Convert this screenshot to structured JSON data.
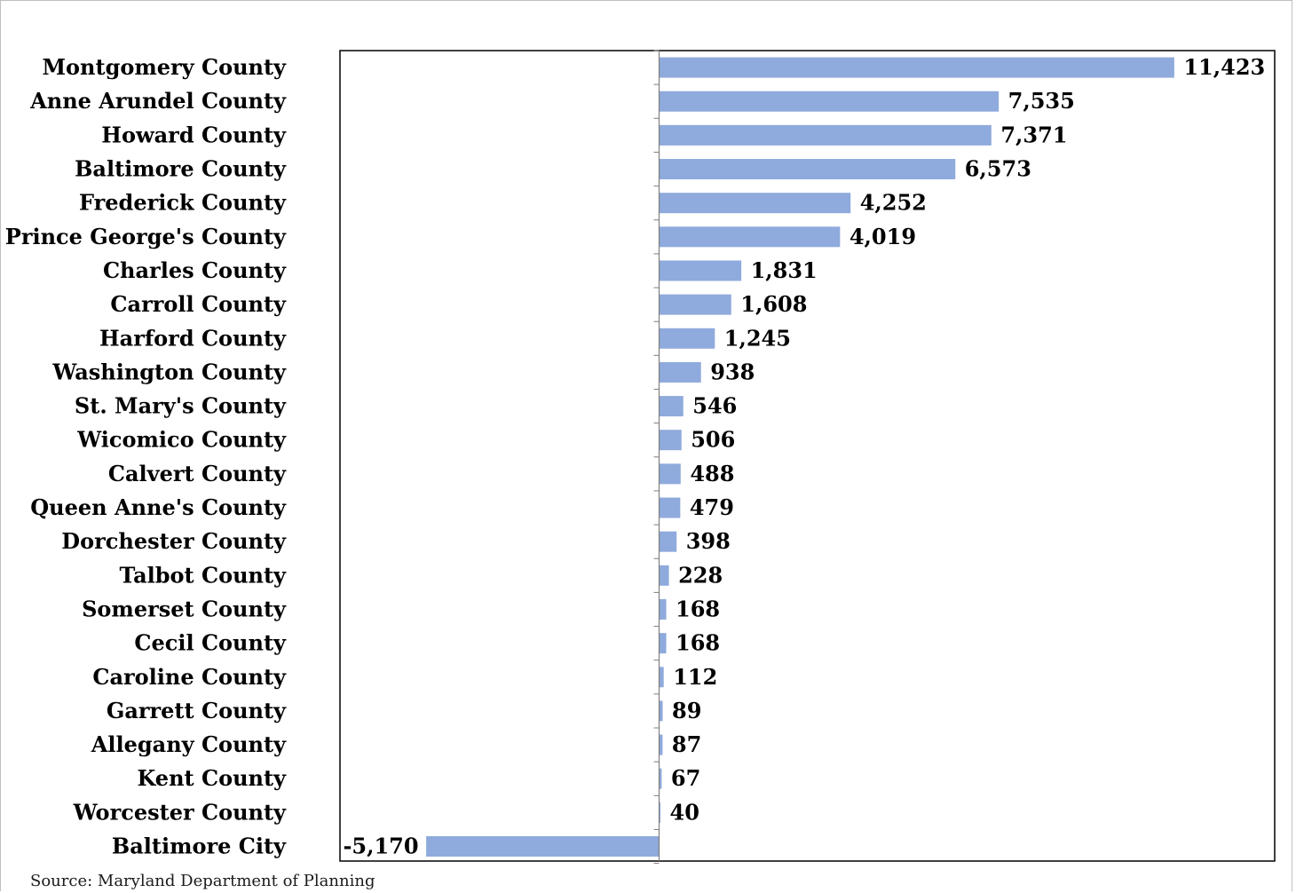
{
  "chart_data": {
    "type": "bar",
    "orientation": "horizontal",
    "title": "",
    "xlabel": "",
    "ylabel": "",
    "categories": [
      "Montgomery County",
      "Anne Arundel County",
      "Howard County",
      "Baltimore County",
      "Frederick County",
      "Prince George's County",
      "Charles County",
      "Carroll County",
      "Harford County",
      "Washington County",
      "St. Mary's County",
      "Wicomico County",
      "Calvert County",
      "Queen Anne's County",
      "Dorchester County",
      "Talbot County",
      "Somerset County",
      "Cecil County",
      "Caroline County",
      "Garrett County",
      "Allegany County",
      "Kent County",
      "Worcester County",
      "Baltimore City"
    ],
    "values": [
      11423,
      7535,
      7371,
      6573,
      4252,
      4019,
      1831,
      1608,
      1245,
      938,
      546,
      506,
      488,
      479,
      398,
      228,
      168,
      168,
      112,
      89,
      87,
      67,
      40,
      -5170
    ],
    "value_labels": [
      "11,423",
      "7,535",
      "7,371",
      "6,573",
      "4,252",
      "4,019",
      "1,831",
      "1,608",
      "1,245",
      "938",
      "546",
      "506",
      "488",
      "479",
      "398",
      "228",
      "168",
      "168",
      "112",
      "89",
      "87",
      "67",
      "40",
      "-5,170"
    ],
    "bar_color": "#8faadc",
    "grid": false,
    "legend": "none"
  },
  "source_note": "Source: Maryland Department of Planning"
}
